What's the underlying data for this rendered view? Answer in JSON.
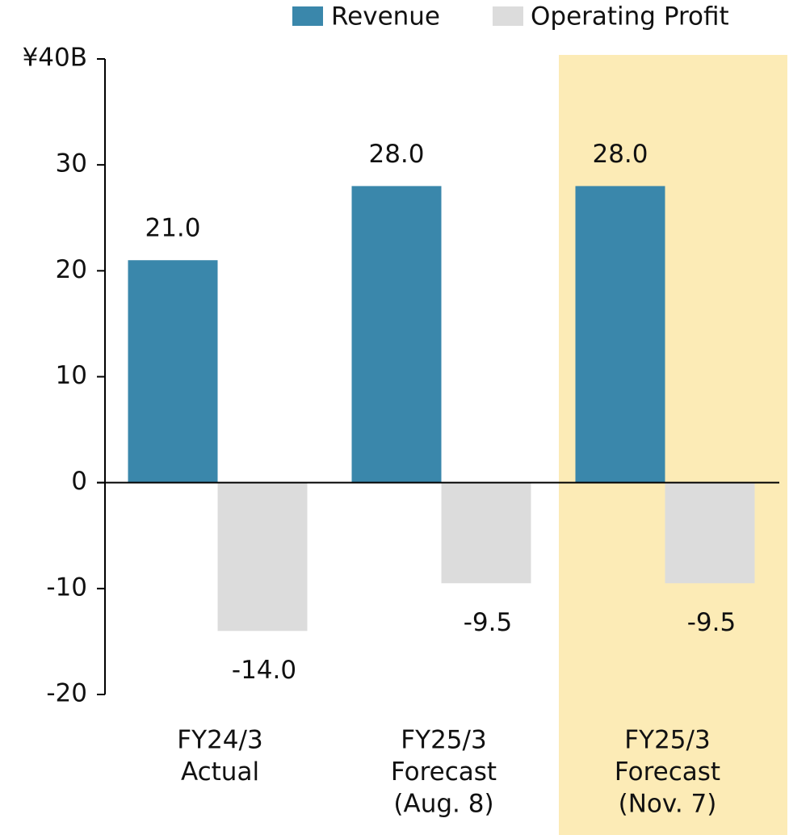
{
  "chart_data": {
    "type": "bar",
    "categories": [
      [
        "FY24/3",
        "Actual"
      ],
      [
        "FY25/3",
        "Forecast",
        "(Aug. 8)"
      ],
      [
        "FY25/3",
        "Forecast",
        "(Nov. 7)"
      ]
    ],
    "series": [
      {
        "name": "Revenue",
        "color": "#3a87ab",
        "values": [
          21.0,
          28.0,
          28.0
        ],
        "value_labels": [
          "21.0",
          "28.0",
          "28.0"
        ]
      },
      {
        "name": "Operating Profit",
        "color": "#dcdcdc",
        "values": [
          -14.0,
          -9.5,
          -9.5
        ],
        "value_labels": [
          "-14.0",
          "-9.5",
          "-9.5"
        ]
      }
    ],
    "ylim": [
      -20,
      40
    ],
    "yticks": [
      -20,
      -10,
      0,
      10,
      20,
      30,
      {
        "value": 40,
        "label": "¥40B"
      }
    ],
    "grid": false,
    "legend": "top-right",
    "highlight": {
      "category": 2,
      "color": "#fcebb6"
    }
  }
}
